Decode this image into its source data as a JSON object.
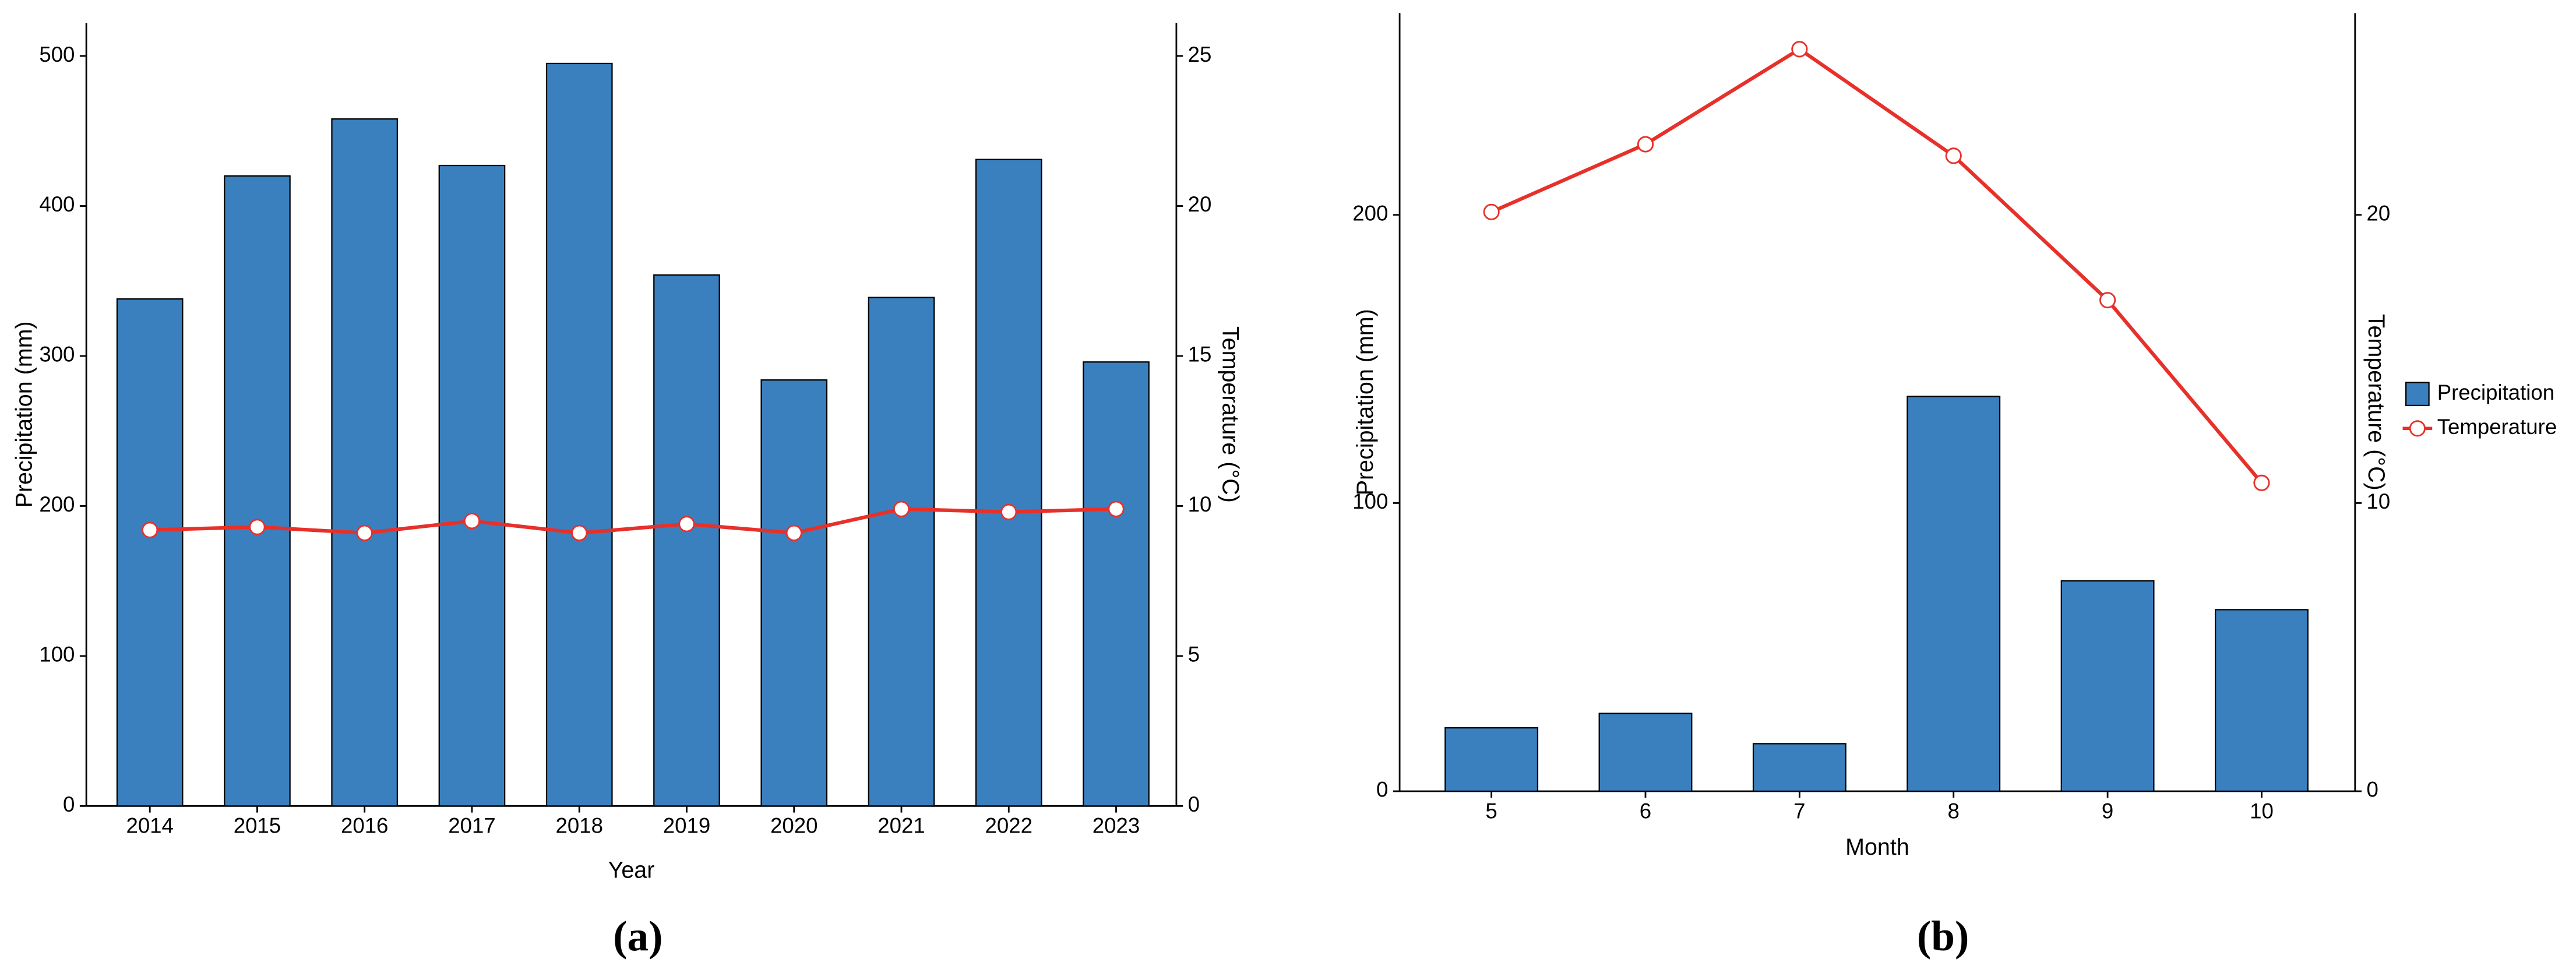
{
  "chart_data": [
    {
      "type": "bar",
      "caption": "(a)",
      "x_label": "Year",
      "y_label": "Precipitation (mm)",
      "y2_label": "Temperature (°C)",
      "categories": [
        "2014",
        "2015",
        "2016",
        "2017",
        "2018",
        "2019",
        "2020",
        "2021",
        "2022",
        "2023"
      ],
      "series": [
        {
          "type": "bar",
          "color": "#3a80be",
          "values": [
            338,
            420,
            458,
            427,
            495,
            354,
            284,
            339,
            431,
            296
          ]
        },
        {
          "type": "line",
          "axis": "y2",
          "color": "#e8302a",
          "values": [
            9.2,
            9.3,
            9.1,
            9.5,
            9.1,
            9.4,
            9.1,
            9.9,
            9.8,
            9.9
          ]
        }
      ],
      "ylim": [
        0,
        522
      ],
      "yticks": [
        0,
        100,
        200,
        300,
        400,
        500
      ],
      "y2lim": [
        0,
        26.1
      ],
      "y2ticks": [
        0,
        5,
        10,
        15,
        20,
        25
      ],
      "legend": false
    },
    {
      "type": "bar",
      "caption": "(b)",
      "x_label": "Month",
      "y_label": "Precipitation (mm)",
      "y2_label": "Temperature (°C)",
      "categories": [
        "5",
        "6",
        "7",
        "8",
        "9",
        "10"
      ],
      "series": [
        {
          "type": "bar",
          "name": "Precipitation",
          "color": "#3a80be",
          "values": [
            22,
            27,
            16.5,
            137,
            73,
            63
          ]
        },
        {
          "type": "line",
          "name": "Temperature",
          "axis": "y2",
          "color": "#e8302a",
          "values": [
            20.1,
            22.45,
            25.75,
            22.05,
            17.04,
            10.7
          ]
        }
      ],
      "ylim": [
        0,
        270
      ],
      "yticks": [
        0,
        100,
        200
      ],
      "y2lim": [
        0,
        27
      ],
      "y2ticks": [
        0,
        10,
        20
      ],
      "legend": "right"
    }
  ]
}
